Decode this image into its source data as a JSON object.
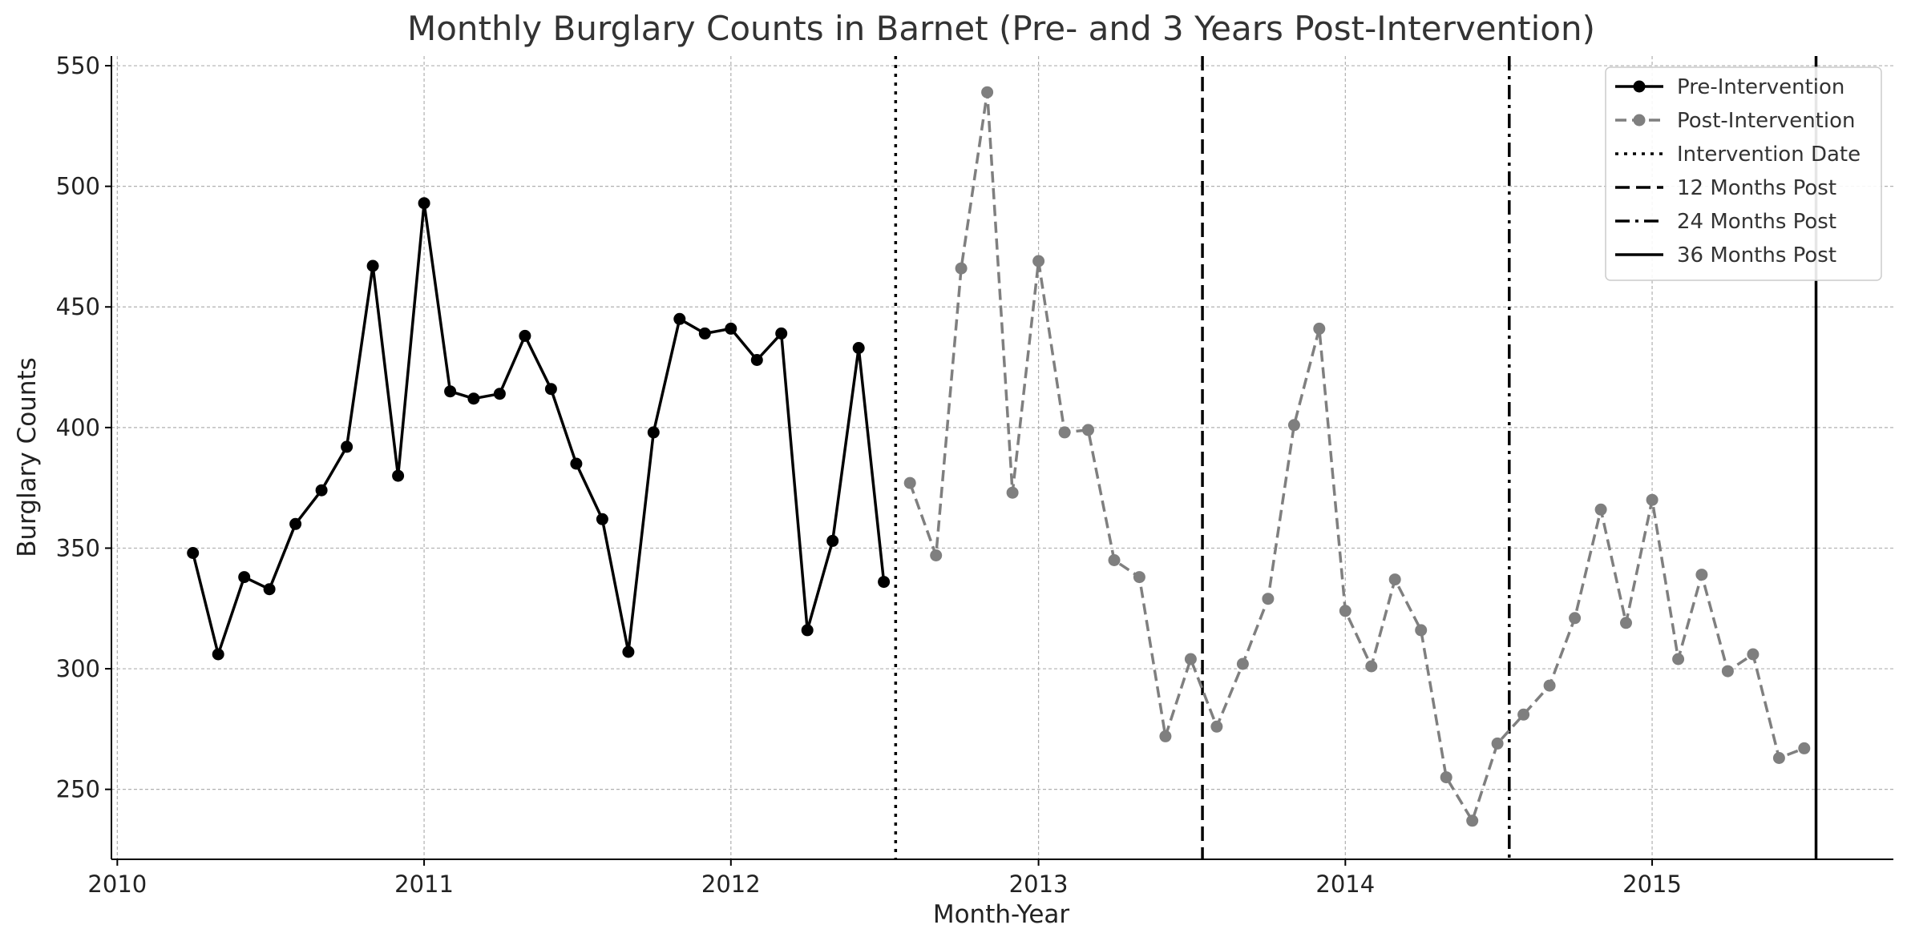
{
  "chart_data": {
    "type": "line",
    "title": "Monthly Burglary Counts in Barnet (Pre- and 3 Years Post-Intervention)",
    "xlabel": "Month-Year",
    "ylabel": "Burglary Counts",
    "xlim": [
      "2009-12-25",
      "2015-10-15"
    ],
    "ylim": [
      221,
      554
    ],
    "x_ticks": [
      "2010",
      "2011",
      "2012",
      "2013",
      "2014",
      "2015"
    ],
    "y_ticks": [
      250,
      300,
      350,
      400,
      450,
      500,
      550
    ],
    "grid": true,
    "legend_position": "top-right",
    "series": [
      {
        "name": "Pre-Intervention",
        "color": "#000000",
        "style": "solid",
        "marker": "circle",
        "x": [
          "2010-04",
          "2010-05",
          "2010-06",
          "2010-07",
          "2010-08",
          "2010-09",
          "2010-10",
          "2010-11",
          "2010-12",
          "2011-01",
          "2011-02",
          "2011-03",
          "2011-04",
          "2011-05",
          "2011-06",
          "2011-07",
          "2011-08",
          "2011-09",
          "2011-10",
          "2011-11",
          "2011-12",
          "2012-01",
          "2012-02",
          "2012-03",
          "2012-04",
          "2012-05",
          "2012-06",
          "2012-07"
        ],
        "values": [
          348,
          306,
          338,
          333,
          360,
          374,
          392,
          467,
          380,
          493,
          415,
          412,
          414,
          438,
          416,
          385,
          362,
          307,
          398,
          445,
          439,
          441,
          428,
          439,
          316,
          353,
          433,
          336
        ]
      },
      {
        "name": "Post-Intervention",
        "color": "#7f7f7f",
        "style": "dashed",
        "marker": "circle",
        "x": [
          "2012-08",
          "2012-09",
          "2012-10",
          "2012-11",
          "2012-12",
          "2013-01",
          "2013-02",
          "2013-03",
          "2013-04",
          "2013-05",
          "2013-06",
          "2013-07",
          "2013-08",
          "2013-09",
          "2013-10",
          "2013-11",
          "2013-12",
          "2014-01",
          "2014-02",
          "2014-03",
          "2014-04",
          "2014-05",
          "2014-06",
          "2014-07",
          "2014-08",
          "2014-09",
          "2014-10",
          "2014-11",
          "2014-12",
          "2015-01",
          "2015-02",
          "2015-03",
          "2015-04",
          "2015-05",
          "2015-06",
          "2015-07"
        ],
        "values": [
          377,
          347,
          466,
          539,
          373,
          469,
          398,
          399,
          345,
          338,
          272,
          304,
          276,
          302,
          329,
          401,
          441,
          324,
          301,
          337,
          316,
          255,
          237,
          269,
          281,
          293,
          321,
          366,
          319,
          370,
          304,
          339,
          299,
          306,
          263,
          267
        ]
      }
    ],
    "vertical_lines": [
      {
        "name": "Intervention Date",
        "x": "2012-07-15",
        "style": "dotted",
        "color": "#000000"
      },
      {
        "name": "12 Months Post",
        "x": "2013-07-15",
        "style": "dashed",
        "color": "#000000"
      },
      {
        "name": "24 Months Post",
        "x": "2014-07-15",
        "style": "dashdot",
        "color": "#000000"
      },
      {
        "name": "36 Months Post",
        "x": "2015-07-15",
        "style": "solid",
        "color": "#000000"
      }
    ]
  }
}
